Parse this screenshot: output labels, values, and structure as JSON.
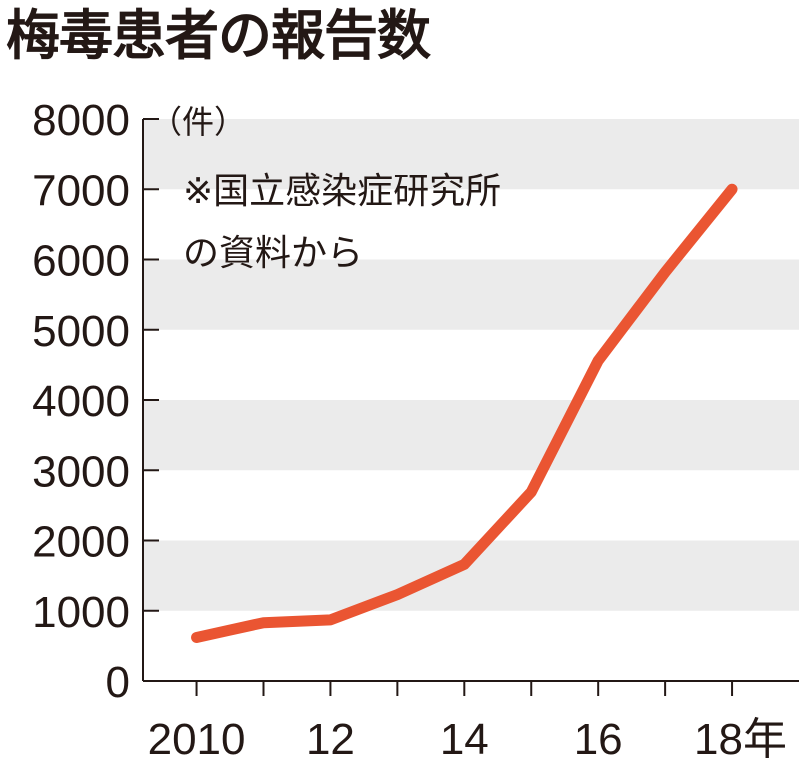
{
  "chart_data": {
    "type": "line",
    "title": "梅毒患者の報告数",
    "unit_label": "（件）",
    "note_lines": [
      "※国立感染症研究所",
      "の資料から"
    ],
    "x": [
      2010,
      2011,
      2012,
      2013,
      2014,
      2015,
      2016,
      2017,
      2018
    ],
    "x_tick_values": [
      2010,
      2012,
      2014,
      2016,
      2018
    ],
    "x_tick_labels": [
      "2010",
      "12",
      "14",
      "16",
      "18年"
    ],
    "series": [
      {
        "name": "梅毒患者の報告数",
        "values": [
          620,
          830,
          870,
          1230,
          1660,
          2690,
          4560,
          5820,
          7000
        ]
      }
    ],
    "y_ticks": [
      0,
      1000,
      2000,
      3000,
      4000,
      5000,
      6000,
      7000,
      8000
    ],
    "ylim": [
      0,
      8000
    ],
    "xlim": [
      2009.2,
      2019.0
    ],
    "line_color": "#EA5532",
    "band_color": "#EBEBEB",
    "xlabel": "",
    "ylabel": ""
  }
}
